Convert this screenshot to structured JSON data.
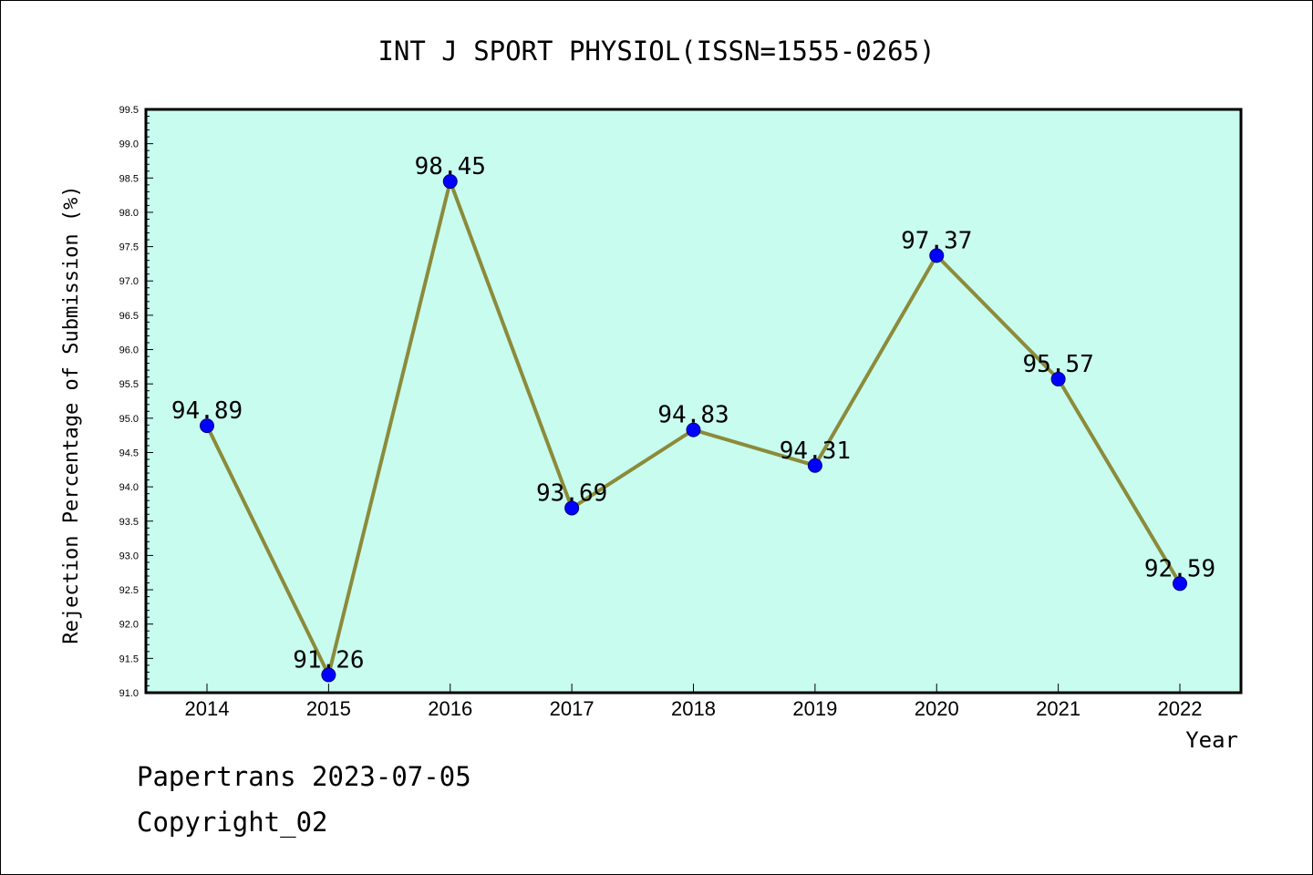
{
  "chart_data": {
    "type": "line",
    "title": "INT J SPORT PHYSIOL(ISSN=1555-0265)",
    "xlabel": "Year",
    "ylabel": "Rejection Percentage of Submission (%)",
    "categories": [
      "2014",
      "2015",
      "2016",
      "2017",
      "2018",
      "2019",
      "2020",
      "2021",
      "2022"
    ],
    "series": [
      {
        "values": [
          94.89,
          91.26,
          98.45,
          93.69,
          94.83,
          94.31,
          97.37,
          95.57,
          92.59
        ]
      }
    ],
    "data_labels": [
      "94.89",
      "91.26",
      "98.45",
      "93.69",
      "94.83",
      "94.31",
      "97.37",
      "95.57",
      "92.59"
    ],
    "ylim": [
      91.0,
      99.5
    ],
    "y_tick_labels": [
      "91.0",
      "91.5",
      "92.0",
      "92.5",
      "93.0",
      "93.5",
      "94.0",
      "94.5",
      "95.0",
      "95.5",
      "96.0",
      "96.5",
      "97.0",
      "97.5",
      "98.0",
      "98.5",
      "99.0",
      "99.5"
    ],
    "grid": false,
    "legend": "none"
  },
  "colors": {
    "plot_background": "#c8fcef",
    "line": "#8b8b3a",
    "marker": "#0000ff"
  },
  "footer": {
    "line1": "Papertrans 2023-07-05",
    "line2": "Copyright_02"
  }
}
